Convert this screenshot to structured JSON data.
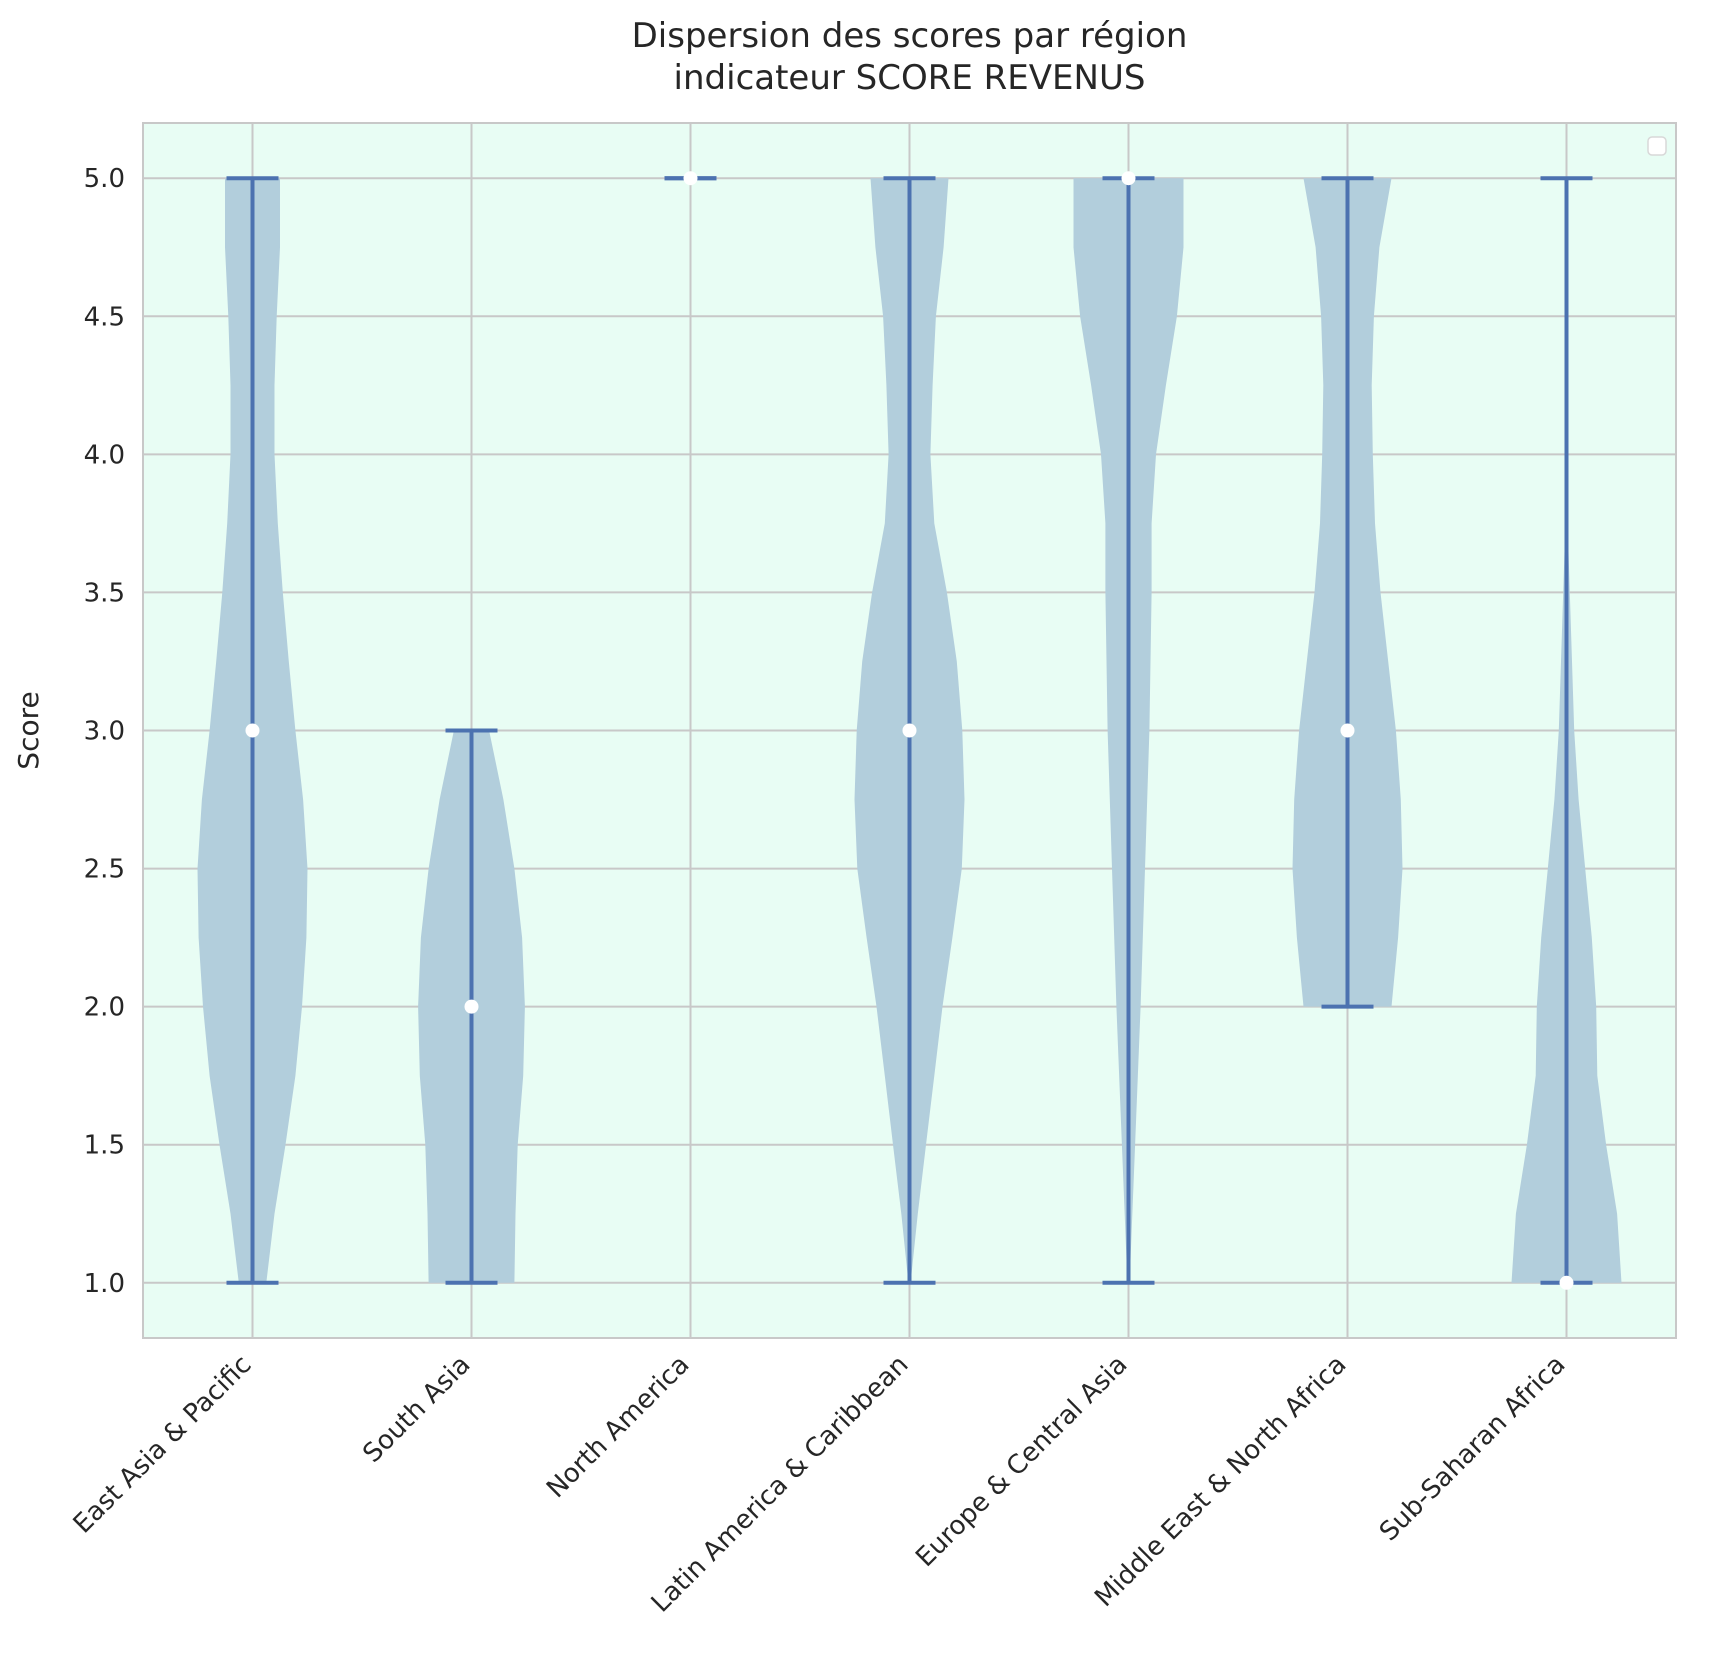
{
  "chart_data": {
    "type": "violin",
    "title": [
      "Dispersion des scores par région",
      "indicateur SCORE REVENUS"
    ],
    "xlabel": "",
    "ylabel": "Score",
    "ylim": [
      0.8,
      5.2
    ],
    "yticks": [
      1.0,
      1.5,
      2.0,
      2.5,
      3.0,
      3.5,
      4.0,
      4.5,
      5.0
    ],
    "ytick_labels": [
      "1.0",
      "1.5",
      "2.0",
      "2.5",
      "3.0",
      "3.5",
      "4.0",
      "4.5",
      "5.0"
    ],
    "grid": true,
    "legend": "top-right",
    "legend_entries": [],
    "categories": [
      "East Asia & Pacific",
      "South Asia",
      "North America",
      "Latin America & Caribbean",
      "Europe & Central Asia",
      "Middle East & North Africa",
      "Sub-Saharan Africa"
    ],
    "series": [
      {
        "category": "East Asia & Pacific",
        "min": 1.0,
        "max": 5.0,
        "median": 3.0,
        "density": [
          [
            1.0,
            0.25
          ],
          [
            1.25,
            0.4
          ],
          [
            1.5,
            0.6
          ],
          [
            1.75,
            0.78
          ],
          [
            2.0,
            0.9
          ],
          [
            2.25,
            0.98
          ],
          [
            2.5,
            1.0
          ],
          [
            2.75,
            0.92
          ],
          [
            3.0,
            0.78
          ],
          [
            3.25,
            0.66
          ],
          [
            3.5,
            0.55
          ],
          [
            3.75,
            0.46
          ],
          [
            4.0,
            0.4
          ],
          [
            4.25,
            0.4
          ],
          [
            4.5,
            0.44
          ],
          [
            4.75,
            0.5
          ],
          [
            5.0,
            0.5
          ]
        ]
      },
      {
        "category": "South Asia",
        "min": 1.0,
        "max": 3.0,
        "median": 2.0,
        "density": [
          [
            1.0,
            0.78
          ],
          [
            1.25,
            0.8
          ],
          [
            1.5,
            0.84
          ],
          [
            1.75,
            0.94
          ],
          [
            2.0,
            0.97
          ],
          [
            2.25,
            0.92
          ],
          [
            2.5,
            0.78
          ],
          [
            2.75,
            0.58
          ],
          [
            3.0,
            0.32
          ]
        ]
      },
      {
        "category": "North America",
        "min": 5.0,
        "max": 5.0,
        "median": 5.0,
        "density": []
      },
      {
        "category": "Latin America & Caribbean",
        "min": 1.0,
        "max": 5.0,
        "median": 3.0,
        "density": [
          [
            1.0,
            0.02
          ],
          [
            1.25,
            0.15
          ],
          [
            1.5,
            0.3
          ],
          [
            1.75,
            0.45
          ],
          [
            2.0,
            0.6
          ],
          [
            2.25,
            0.78
          ],
          [
            2.5,
            0.95
          ],
          [
            2.75,
            1.0
          ],
          [
            3.0,
            0.96
          ],
          [
            3.25,
            0.86
          ],
          [
            3.5,
            0.68
          ],
          [
            3.75,
            0.45
          ],
          [
            4.0,
            0.38
          ],
          [
            4.25,
            0.42
          ],
          [
            4.5,
            0.48
          ],
          [
            4.75,
            0.62
          ],
          [
            5.0,
            0.71
          ]
        ]
      },
      {
        "category": "Europe & Central Asia",
        "min": 1.0,
        "max": 5.0,
        "median": 5.0,
        "density": [
          [
            1.0,
            0.02
          ],
          [
            1.5,
            0.12
          ],
          [
            2.0,
            0.22
          ],
          [
            2.5,
            0.3
          ],
          [
            3.0,
            0.38
          ],
          [
            3.5,
            0.42
          ],
          [
            3.75,
            0.42
          ],
          [
            4.0,
            0.5
          ],
          [
            4.25,
            0.68
          ],
          [
            4.5,
            0.88
          ],
          [
            4.75,
            1.0
          ],
          [
            5.0,
            1.0
          ]
        ]
      },
      {
        "category": "Middle East & North Africa",
        "min": 2.0,
        "max": 5.0,
        "median": 3.0,
        "density": [
          [
            2.0,
            0.8
          ],
          [
            2.25,
            0.92
          ],
          [
            2.5,
            1.0
          ],
          [
            2.75,
            0.97
          ],
          [
            3.0,
            0.88
          ],
          [
            3.25,
            0.74
          ],
          [
            3.5,
            0.6
          ],
          [
            3.75,
            0.5
          ],
          [
            4.0,
            0.46
          ],
          [
            4.25,
            0.44
          ],
          [
            4.5,
            0.48
          ],
          [
            4.75,
            0.58
          ],
          [
            5.0,
            0.8
          ]
        ]
      },
      {
        "category": "Sub-Saharan Africa",
        "min": 1.0,
        "max": 5.0,
        "median": 1.0,
        "density": [
          [
            1.0,
            1.0
          ],
          [
            1.25,
            0.92
          ],
          [
            1.5,
            0.72
          ],
          [
            1.75,
            0.56
          ],
          [
            2.0,
            0.54
          ],
          [
            2.25,
            0.46
          ],
          [
            2.5,
            0.34
          ],
          [
            2.75,
            0.22
          ],
          [
            3.0,
            0.14
          ],
          [
            3.25,
            0.1
          ],
          [
            3.5,
            0.06
          ],
          [
            3.75,
            0.02
          ],
          [
            3.9,
            0.0
          ],
          [
            5.0,
            0.0
          ]
        ]
      }
    ],
    "colors": {
      "background": "#e8fdf4",
      "violin_fill": "#b2cedc",
      "line": "#4c72b0",
      "median_marker": "#ffffff",
      "grid": "#c8c8c8",
      "spine": "#c8c8c8",
      "text": "#262626"
    }
  }
}
